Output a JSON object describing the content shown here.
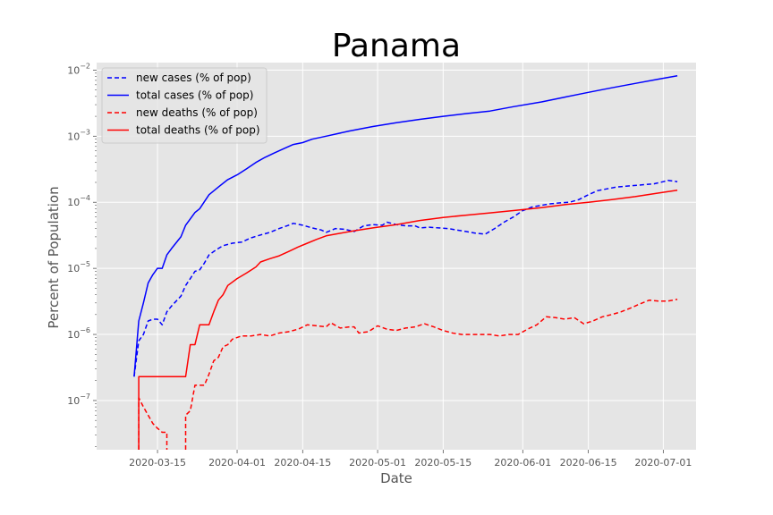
{
  "chart_data": {
    "type": "line",
    "title": "Panama",
    "xlabel": "Date",
    "ylabel": "Percent of Population",
    "yscale": "log",
    "ylim": [
      1.8e-08,
      0.013
    ],
    "xlim": [
      "2020-03-02",
      "2020-07-08"
    ],
    "grid": true,
    "legend_position": "top-left",
    "xticks": [
      "2020-03-15",
      "2020-04-01",
      "2020-04-15",
      "2020-05-01",
      "2020-05-15",
      "2020-06-01",
      "2020-06-15",
      "2020-07-01"
    ],
    "yticks": [
      {
        "value": 1e-07,
        "base": "10",
        "exp": "−7"
      },
      {
        "value": 1e-06,
        "base": "10",
        "exp": "−6"
      },
      {
        "value": 1e-05,
        "base": "10",
        "exp": "−5"
      },
      {
        "value": 0.0001,
        "base": "10",
        "exp": "−4"
      },
      {
        "value": 0.001,
        "base": "10",
        "exp": "−3"
      },
      {
        "value": 0.01,
        "base": "10",
        "exp": "−2"
      }
    ],
    "colors": {
      "cases": "#0000ff",
      "deaths": "#ff0000",
      "background": "#e5e5e5",
      "grid": "#ffffff"
    },
    "series": [
      {
        "name": "new cases (% of pop)",
        "color": "#0000ff",
        "style": "dashed",
        "points": [
          [
            "2020-03-10",
            2.3e-07
          ],
          [
            "2020-03-11",
            8e-07
          ],
          [
            "2020-03-12",
            1e-06
          ],
          [
            "2020-03-13",
            1.6e-06
          ],
          [
            "2020-03-14",
            1.7e-06
          ],
          [
            "2020-03-15",
            1.7e-06
          ],
          [
            "2020-03-16",
            1.4e-06
          ],
          [
            "2020-03-17",
            2.2e-06
          ],
          [
            "2020-03-18",
            2.7e-06
          ],
          [
            "2020-03-19",
            3.2e-06
          ],
          [
            "2020-03-20",
            3.8e-06
          ],
          [
            "2020-03-21",
            5.5e-06
          ],
          [
            "2020-03-22",
            7e-06
          ],
          [
            "2020-03-23",
            9e-06
          ],
          [
            "2020-03-24",
            9.5e-06
          ],
          [
            "2020-03-25",
            1.2e-05
          ],
          [
            "2020-03-26",
            1.6e-05
          ],
          [
            "2020-03-27",
            1.8e-05
          ],
          [
            "2020-03-28",
            2e-05
          ],
          [
            "2020-03-29",
            2.2e-05
          ],
          [
            "2020-03-30",
            2.3e-05
          ],
          [
            "2020-03-31",
            2.4e-05
          ],
          [
            "2020-04-02",
            2.5e-05
          ],
          [
            "2020-04-04",
            2.9e-05
          ],
          [
            "2020-04-06",
            3.2e-05
          ],
          [
            "2020-04-08",
            3.5e-05
          ],
          [
            "2020-04-10",
            4e-05
          ],
          [
            "2020-04-12",
            4.5e-05
          ],
          [
            "2020-04-13",
            4.8e-05
          ],
          [
            "2020-04-15",
            4.5e-05
          ],
          [
            "2020-04-17",
            4.1e-05
          ],
          [
            "2020-04-19",
            3.8e-05
          ],
          [
            "2020-04-20",
            3.5e-05
          ],
          [
            "2020-04-22",
            4e-05
          ],
          [
            "2020-04-24",
            3.9e-05
          ],
          [
            "2020-04-26",
            3.6e-05
          ],
          [
            "2020-04-28",
            4.4e-05
          ],
          [
            "2020-04-30",
            4.6e-05
          ],
          [
            "2020-05-02",
            4.5e-05
          ],
          [
            "2020-05-03",
            5e-05
          ],
          [
            "2020-05-05",
            4.6e-05
          ],
          [
            "2020-05-07",
            4.4e-05
          ],
          [
            "2020-05-09",
            4.4e-05
          ],
          [
            "2020-05-10",
            4.1e-05
          ],
          [
            "2020-05-12",
            4.2e-05
          ],
          [
            "2020-05-14",
            4.1e-05
          ],
          [
            "2020-05-16",
            4e-05
          ],
          [
            "2020-05-18",
            3.8e-05
          ],
          [
            "2020-05-20",
            3.6e-05
          ],
          [
            "2020-05-22",
            3.4e-05
          ],
          [
            "2020-05-24",
            3.3e-05
          ],
          [
            "2020-05-26",
            4e-05
          ],
          [
            "2020-05-28",
            5e-05
          ],
          [
            "2020-05-30",
            6e-05
          ],
          [
            "2020-06-01",
            7.5e-05
          ],
          [
            "2020-06-03",
            8.5e-05
          ],
          [
            "2020-06-05",
            9e-05
          ],
          [
            "2020-06-07",
            9.5e-05
          ],
          [
            "2020-06-09",
            9.8e-05
          ],
          [
            "2020-06-11",
            0.0001
          ],
          [
            "2020-06-13",
            0.00011
          ],
          [
            "2020-06-15",
            0.00013
          ],
          [
            "2020-06-17",
            0.00015
          ],
          [
            "2020-06-19",
            0.00016
          ],
          [
            "2020-06-21",
            0.00017
          ],
          [
            "2020-06-23",
            0.000175
          ],
          [
            "2020-06-25",
            0.00018
          ],
          [
            "2020-06-27",
            0.000185
          ],
          [
            "2020-06-29",
            0.00019
          ],
          [
            "2020-07-01",
            0.000205
          ],
          [
            "2020-07-02",
            0.000215
          ],
          [
            "2020-07-04",
            0.000205
          ]
        ]
      },
      {
        "name": "total cases (% of pop)",
        "color": "#0000ff",
        "style": "solid",
        "points": [
          [
            "2020-03-10",
            2.3e-07
          ],
          [
            "2020-03-11",
            1.6e-06
          ],
          [
            "2020-03-12",
            3e-06
          ],
          [
            "2020-03-13",
            6e-06
          ],
          [
            "2020-03-14",
            8e-06
          ],
          [
            "2020-03-15",
            1e-05
          ],
          [
            "2020-03-16",
            1e-05
          ],
          [
            "2020-03-17",
            1.6e-05
          ],
          [
            "2020-03-18",
            2e-05
          ],
          [
            "2020-03-20",
            3e-05
          ],
          [
            "2020-03-21",
            4.5e-05
          ],
          [
            "2020-03-23",
            7e-05
          ],
          [
            "2020-03-24",
            8e-05
          ],
          [
            "2020-03-26",
            0.00013
          ],
          [
            "2020-03-28",
            0.00017
          ],
          [
            "2020-03-30",
            0.00022
          ],
          [
            "2020-04-01",
            0.00026
          ],
          [
            "2020-04-03",
            0.00032
          ],
          [
            "2020-04-05",
            0.0004
          ],
          [
            "2020-04-07",
            0.00048
          ],
          [
            "2020-04-09",
            0.00056
          ],
          [
            "2020-04-11",
            0.00065
          ],
          [
            "2020-04-13",
            0.00075
          ],
          [
            "2020-04-15",
            0.0008
          ],
          [
            "2020-04-17",
            0.0009
          ],
          [
            "2020-04-20",
            0.001
          ],
          [
            "2020-04-25",
            0.0012
          ],
          [
            "2020-04-30",
            0.0014
          ],
          [
            "2020-05-05",
            0.0016
          ],
          [
            "2020-05-10",
            0.0018
          ],
          [
            "2020-05-15",
            0.002
          ],
          [
            "2020-05-20",
            0.0022
          ],
          [
            "2020-05-25",
            0.0024
          ],
          [
            "2020-05-30",
            0.0028
          ],
          [
            "2020-06-05",
            0.0033
          ],
          [
            "2020-06-10",
            0.0039
          ],
          [
            "2020-06-15",
            0.0046
          ],
          [
            "2020-06-20",
            0.0054
          ],
          [
            "2020-06-25",
            0.0063
          ],
          [
            "2020-06-30",
            0.0073
          ],
          [
            "2020-07-04",
            0.0082
          ]
        ]
      },
      {
        "name": "new deaths (% of pop)",
        "color": "#ff0000",
        "style": "dashed",
        "segments": [
          [
            [
              "2020-03-11",
              1e-09
            ],
            [
              "2020-03-11",
              1.1e-07
            ],
            [
              "2020-03-12",
              8e-08
            ],
            [
              "2020-03-13",
              6e-08
            ],
            [
              "2020-03-14",
              4.5e-08
            ],
            [
              "2020-03-15",
              3.8e-08
            ],
            [
              "2020-03-16",
              3.3e-08
            ],
            [
              "2020-03-17",
              3.3e-08
            ],
            [
              "2020-03-17",
              1e-09
            ]
          ],
          [
            [
              "2020-03-21",
              1e-09
            ],
            [
              "2020-03-21",
              6e-08
            ],
            [
              "2020-03-22",
              7e-08
            ],
            [
              "2020-03-23",
              1.7e-07
            ],
            [
              "2020-03-24",
              1.7e-07
            ],
            [
              "2020-03-25",
              1.7e-07
            ],
            [
              "2020-03-26",
              2.5e-07
            ],
            [
              "2020-03-27",
              4e-07
            ],
            [
              "2020-03-28",
              4.5e-07
            ],
            [
              "2020-03-29",
              6.5e-07
            ],
            [
              "2020-03-30",
              7e-07
            ],
            [
              "2020-03-31",
              8.5e-07
            ],
            [
              "2020-04-02",
              9.5e-07
            ],
            [
              "2020-04-04",
              9.5e-07
            ],
            [
              "2020-04-06",
              1e-06
            ],
            [
              "2020-04-08",
              9.5e-07
            ],
            [
              "2020-04-10",
              1.05e-06
            ],
            [
              "2020-04-12",
              1.1e-06
            ],
            [
              "2020-04-14",
              1.2e-06
            ],
            [
              "2020-04-16",
              1.4e-06
            ],
            [
              "2020-04-18",
              1.35e-06
            ],
            [
              "2020-04-20",
              1.3e-06
            ],
            [
              "2020-04-21",
              1.5e-06
            ],
            [
              "2020-04-23",
              1.25e-06
            ],
            [
              "2020-04-25",
              1.3e-06
            ],
            [
              "2020-04-26",
              1.3e-06
            ],
            [
              "2020-04-27",
              1.05e-06
            ],
            [
              "2020-04-29",
              1.1e-06
            ],
            [
              "2020-05-01",
              1.35e-06
            ],
            [
              "2020-05-03",
              1.2e-06
            ],
            [
              "2020-05-05",
              1.15e-06
            ],
            [
              "2020-05-07",
              1.25e-06
            ],
            [
              "2020-05-09",
              1.3e-06
            ],
            [
              "2020-05-11",
              1.45e-06
            ],
            [
              "2020-05-13",
              1.3e-06
            ],
            [
              "2020-05-15",
              1.15e-06
            ],
            [
              "2020-05-17",
              1.05e-06
            ],
            [
              "2020-05-19",
              1e-06
            ],
            [
              "2020-05-21",
              1e-06
            ],
            [
              "2020-05-23",
              1e-06
            ],
            [
              "2020-05-25",
              1e-06
            ],
            [
              "2020-05-27",
              9.5e-07
            ],
            [
              "2020-05-29",
              1e-06
            ],
            [
              "2020-05-31",
              1e-06
            ],
            [
              "2020-06-02",
              1.2e-06
            ],
            [
              "2020-06-04",
              1.4e-06
            ],
            [
              "2020-06-06",
              1.85e-06
            ],
            [
              "2020-06-08",
              1.8e-06
            ],
            [
              "2020-06-10",
              1.7e-06
            ],
            [
              "2020-06-12",
              1.8e-06
            ],
            [
              "2020-06-14",
              1.45e-06
            ],
            [
              "2020-06-16",
              1.6e-06
            ],
            [
              "2020-06-18",
              1.85e-06
            ],
            [
              "2020-06-20",
              2e-06
            ],
            [
              "2020-06-22",
              2.2e-06
            ],
            [
              "2020-06-24",
              2.5e-06
            ],
            [
              "2020-06-26",
              2.9e-06
            ],
            [
              "2020-06-28",
              3.3e-06
            ],
            [
              "2020-06-30",
              3.2e-06
            ],
            [
              "2020-07-02",
              3.2e-06
            ],
            [
              "2020-07-04",
              3.4e-06
            ]
          ]
        ]
      },
      {
        "name": "total deaths (% of pop)",
        "color": "#ff0000",
        "style": "solid",
        "segments": [
          [
            [
              "2020-03-11",
              1e-09
            ],
            [
              "2020-03-11",
              2.3e-07
            ],
            [
              "2020-03-21",
              2.3e-07
            ],
            [
              "2020-03-22",
              7e-07
            ],
            [
              "2020-03-23",
              7e-07
            ],
            [
              "2020-03-24",
              1.4e-06
            ],
            [
              "2020-03-26",
              1.4e-06
            ],
            [
              "2020-03-27",
              2.2e-06
            ],
            [
              "2020-03-28",
              3.3e-06
            ],
            [
              "2020-03-29",
              4e-06
            ],
            [
              "2020-03-30",
              5.5e-06
            ],
            [
              "2020-04-01",
              7e-06
            ],
            [
              "2020-04-03",
              8.5e-06
            ],
            [
              "2020-04-05",
              1.05e-05
            ],
            [
              "2020-04-06",
              1.25e-05
            ],
            [
              "2020-04-08",
              1.4e-05
            ],
            [
              "2020-04-10",
              1.55e-05
            ],
            [
              "2020-04-12",
              1.8e-05
            ],
            [
              "2020-04-14",
              2.1e-05
            ],
            [
              "2020-04-16",
              2.4e-05
            ],
            [
              "2020-04-18",
              2.75e-05
            ],
            [
              "2020-04-20",
              3.1e-05
            ],
            [
              "2020-04-23",
              3.4e-05
            ],
            [
              "2020-04-26",
              3.7e-05
            ],
            [
              "2020-04-30",
              4.1e-05
            ],
            [
              "2020-05-05",
              4.6e-05
            ],
            [
              "2020-05-10",
              5.3e-05
            ],
            [
              "2020-05-15",
              5.9e-05
            ],
            [
              "2020-05-20",
              6.4e-05
            ],
            [
              "2020-05-25",
              6.9e-05
            ],
            [
              "2020-05-30",
              7.5e-05
            ],
            [
              "2020-06-05",
              8.3e-05
            ],
            [
              "2020-06-10",
              9.2e-05
            ],
            [
              "2020-06-15",
              0.0001
            ],
            [
              "2020-06-20",
              0.00011
            ],
            [
              "2020-06-25",
              0.000122
            ],
            [
              "2020-06-30",
              0.000138
            ],
            [
              "2020-07-04",
              0.000152
            ]
          ]
        ]
      }
    ]
  }
}
